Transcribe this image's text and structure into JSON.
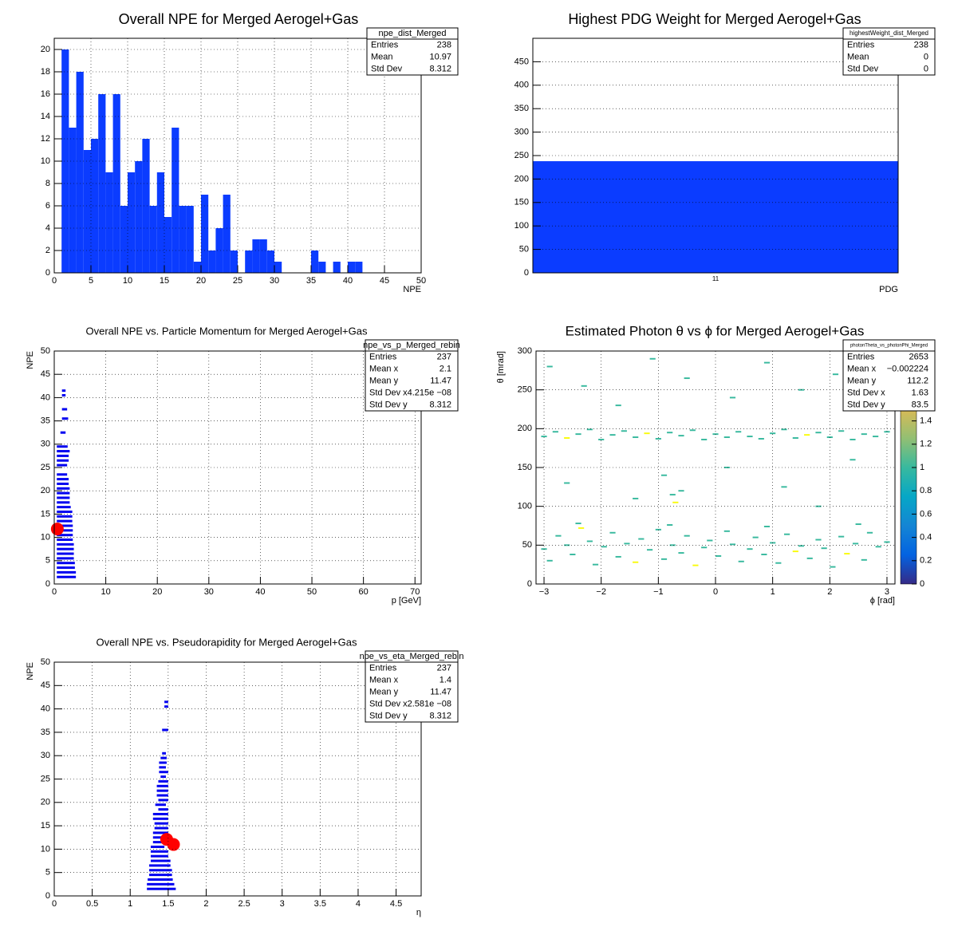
{
  "chart_data": [
    {
      "type": "histogram",
      "title": "Overall NPE for Merged Aerogel+Gas",
      "xlabel": "NPE",
      "color": "#0b3cff",
      "bins": [
        0,
        1,
        2,
        3,
        4,
        5,
        6,
        7,
        8,
        9,
        10,
        11,
        12,
        13,
        14,
        15,
        16,
        17,
        18,
        19,
        20,
        21,
        22,
        23,
        24,
        25,
        26,
        27,
        28,
        29,
        30,
        31,
        32,
        33,
        34,
        35,
        36,
        37,
        38,
        39,
        40,
        41,
        42,
        43,
        44,
        45,
        46,
        47,
        48,
        49,
        50
      ],
      "counts": [
        0,
        20,
        13,
        18,
        11,
        12,
        16,
        9,
        16,
        6,
        9,
        10,
        12,
        6,
        9,
        5,
        13,
        6,
        6,
        1,
        7,
        2,
        4,
        7,
        2,
        0,
        2,
        3,
        3,
        2,
        1,
        0,
        0,
        0,
        0,
        2,
        1,
        0,
        1,
        0,
        1,
        1,
        0,
        0,
        0,
        0,
        0,
        0,
        0,
        0
      ],
      "xlim": [
        0,
        50
      ],
      "xticks": [
        0,
        5,
        10,
        15,
        20,
        25,
        30,
        35,
        40,
        45,
        50
      ],
      "ylim": [
        0,
        21
      ],
      "yticks": [
        0,
        2,
        4,
        6,
        8,
        10,
        12,
        14,
        16,
        18,
        20
      ],
      "grid": true,
      "stats": {
        "name": "npe_dist_Merged",
        "rows": [
          [
            "Entries",
            238
          ],
          [
            "Mean",
            10.97
          ],
          [
            "Std Dev",
            8.312
          ]
        ]
      }
    },
    {
      "type": "bar",
      "title": "Highest PDG Weight for Merged Aerogel+Gas",
      "xlabel": "PDG",
      "color": "#0b3cff",
      "categories": [
        "11"
      ],
      "values": [
        238
      ],
      "ylim": [
        0,
        500
      ],
      "yticks": [
        0,
        50,
        100,
        150,
        200,
        250,
        300,
        350,
        400,
        450
      ],
      "grid": true,
      "stats": {
        "name": "highestWeight_dist_Merged",
        "rows": [
          [
            "Entries",
            238
          ],
          [
            "Mean",
            0
          ],
          [
            "Std Dev",
            0
          ]
        ]
      }
    },
    {
      "type": "box2d",
      "title": "Overall NPE vs. Particle Momentum for Merged Aerogel+Gas",
      "xlabel": "p [GeV]",
      "ylabel": "NPE",
      "color": "#0000f0",
      "point_color": "#ff0000",
      "cells": {
        "y": [
          1.5,
          2.5,
          3.5,
          4.5,
          5.5,
          6.5,
          7.5,
          8.5,
          9.5,
          10.5,
          11.5,
          12.5,
          13.5,
          14.5,
          15.5,
          16.5,
          17.5,
          18.5,
          19.5,
          20.5,
          21.5,
          22.5,
          23.5,
          25.5,
          26.5,
          27.5,
          28.5,
          29.5,
          32.5,
          35.5,
          37.5,
          40.5,
          41.5
        ],
        "xmin": [
          0.5,
          0.5,
          0.5,
          0.5,
          0.5,
          0.5,
          0.5,
          0.5,
          0.5,
          0.5,
          0.5,
          0.5,
          0.5,
          0.5,
          0.5,
          0.5,
          0.5,
          0.5,
          0.5,
          0.5,
          0.5,
          0.5,
          0.5,
          0.5,
          0.5,
          0.5,
          0.5,
          0.5,
          1.2,
          1.5,
          1.5,
          1.5,
          1.5
        ],
        "xmax": [
          4.2,
          4.2,
          4,
          4,
          3.8,
          3.8,
          3.8,
          3.8,
          3.6,
          3.6,
          3.6,
          3.6,
          3.5,
          3.5,
          3.5,
          3.2,
          3,
          3,
          3,
          3,
          2.8,
          2.8,
          2.5,
          2.5,
          2.8,
          2.8,
          3,
          2.6,
          2.2,
          2.7,
          2.5,
          2.2,
          2.2
        ]
      },
      "points": {
        "x": [
          0.6
        ],
        "y": [
          11.8
        ]
      },
      "xlim": [
        0,
        71.2
      ],
      "xticks": [
        0,
        10,
        20,
        30,
        40,
        50,
        60,
        70
      ],
      "ylim": [
        0,
        50
      ],
      "yticks": [
        0,
        5,
        10,
        15,
        20,
        25,
        30,
        35,
        40,
        45,
        50
      ],
      "grid": true,
      "stats": {
        "name": "npe_vs_p_Merged_rebin",
        "rows": [
          [
            "Entries",
            237
          ],
          [
            "Mean x",
            2.1
          ],
          [
            "Mean y",
            11.47
          ],
          [
            "Std Dev x",
            "4.215e −08"
          ],
          [
            "Std Dev y",
            8.312
          ]
        ]
      }
    },
    {
      "type": "colz",
      "title": "Estimated Photon θ vs ϕ for Merged Aerogel+Gas",
      "xlabel": "ϕ [rad]",
      "ylabel": "θ [mrad]",
      "xbin": 0.1,
      "ybin": 2,
      "x": [
        -3.0,
        -2.8,
        -2.6,
        -2.4,
        -2.2,
        -2.0,
        -1.8,
        -1.6,
        -1.4,
        -1.2,
        -1.0,
        -0.8,
        -0.6,
        -0.4,
        -0.2,
        0.0,
        0.2,
        0.4,
        0.6,
        0.8,
        1.0,
        1.2,
        1.4,
        1.6,
        1.8,
        2.0,
        2.2,
        2.4,
        2.6,
        2.8,
        3.0,
        -3.0,
        -2.9,
        -2.75,
        -2.6,
        -2.5,
        -2.35,
        -2.2,
        -2.1,
        -1.95,
        -1.8,
        -1.7,
        -1.55,
        -1.4,
        -1.3,
        -1.15,
        -1.0,
        -0.9,
        -0.75,
        -0.6,
        -0.5,
        -0.35,
        -0.2,
        -0.1,
        0.05,
        0.2,
        0.3,
        0.45,
        0.6,
        0.7,
        0.85,
        1.0,
        1.1,
        1.25,
        1.4,
        1.5,
        1.65,
        1.8,
        1.9,
        2.05,
        2.2,
        2.3,
        2.45,
        2.6,
        2.7,
        2.85,
        3.0,
        -2.4,
        -0.8,
        0.9,
        2.5,
        -2.9,
        -2.3,
        -1.7,
        -1.1,
        -0.5,
        0.3,
        0.9,
        1.5,
        2.1,
        2.7,
        -2.6,
        -1.4,
        -0.9,
        -0.6,
        0.2,
        1.2,
        1.8,
        2.4,
        -0.75,
        -0.7
      ],
      "y": [
        190,
        196,
        188,
        193,
        199,
        186,
        192,
        197,
        189,
        194,
        187,
        195,
        191,
        198,
        186,
        193,
        189,
        196,
        190,
        187,
        194,
        199,
        188,
        192,
        195,
        189,
        197,
        186,
        193,
        190,
        196,
        45,
        30,
        62,
        50,
        38,
        72,
        55,
        25,
        48,
        66,
        35,
        52,
        28,
        58,
        44,
        70,
        32,
        50,
        40,
        62,
        24,
        47,
        56,
        36,
        68,
        51,
        29,
        45,
        60,
        38,
        53,
        27,
        64,
        42,
        49,
        33,
        57,
        46,
        22,
        61,
        39,
        52,
        31,
        66,
        48,
        54,
        78,
        76,
        74,
        77,
        280,
        255,
        230,
        290,
        265,
        240,
        285,
        250,
        270,
        235,
        130,
        110,
        140,
        120,
        150,
        125,
        100,
        160,
        115,
        105
      ],
      "z": [
        1,
        1,
        2,
        1,
        1,
        1,
        1,
        1,
        1,
        2,
        1,
        1,
        1,
        1,
        1,
        1,
        1,
        1,
        1,
        1,
        1,
        1,
        1,
        2,
        1,
        1,
        1,
        1,
        1,
        1,
        1,
        1,
        1,
        1,
        1,
        1,
        2,
        1,
        1,
        1,
        1,
        1,
        1,
        2,
        1,
        1,
        1,
        1,
        1,
        1,
        1,
        2,
        1,
        1,
        1,
        1,
        1,
        1,
        1,
        1,
        1,
        1,
        1,
        1,
        2,
        1,
        1,
        1,
        1,
        1,
        1,
        2,
        1,
        1,
        1,
        1,
        1,
        1,
        1,
        1,
        1,
        1,
        1,
        1,
        1,
        1,
        1,
        1,
        1,
        1,
        1,
        1,
        1,
        1,
        1,
        1,
        1,
        1,
        1,
        1,
        2
      ],
      "xlim": [
        -3.14,
        3.14
      ],
      "xticks": [
        {
          "value": -3,
          "label": "−3"
        },
        {
          "value": -2,
          "label": "−2"
        },
        {
          "value": -1,
          "label": "−1"
        },
        0,
        1,
        2,
        3
      ],
      "ylim": [
        0,
        300
      ],
      "yticks": [
        0,
        50,
        100,
        150,
        200,
        250,
        300
      ],
      "grid": true,
      "zlim": [
        0,
        2
      ],
      "zticks": [
        0,
        0.2,
        0.4,
        0.6,
        0.8,
        1,
        1.2,
        1.4
      ],
      "stats": {
        "name": "photonTheta_vs_photonPhi_Merged",
        "rows": [
          [
            "Entries",
            2653
          ],
          [
            "Mean x",
            "−0.002224"
          ],
          [
            "Mean y",
            112.2
          ],
          [
            "Std Dev x",
            1.63
          ],
          [
            "Std Dev y",
            83.5
          ]
        ]
      }
    },
    {
      "type": "box2d",
      "title": "Overall NPE vs. Pseudorapidity for Merged Aerogel+Gas",
      "xlabel": "η",
      "ylabel": "NPE",
      "color": "#0000f0",
      "point_color": "#ff0000",
      "cells": {
        "y": [
          1.5,
          2.5,
          3.5,
          4.5,
          5.5,
          6.5,
          7.5,
          8.5,
          9.5,
          10.5,
          11.5,
          12.5,
          13.5,
          14.5,
          15.5,
          16.5,
          17.5,
          18.5,
          19.5,
          20.5,
          21.5,
          22.5,
          23.5,
          24.5,
          25.5,
          26.5,
          27.5,
          28.5,
          29.5,
          30.5,
          35.5,
          40.5,
          41.5
        ],
        "xmin": [
          1.22,
          1.22,
          1.23,
          1.25,
          1.25,
          1.25,
          1.27,
          1.27,
          1.27,
          1.27,
          1.3,
          1.3,
          1.3,
          1.32,
          1.32,
          1.3,
          1.3,
          1.37,
          1.33,
          1.37,
          1.35,
          1.35,
          1.35,
          1.37,
          1.4,
          1.38,
          1.38,
          1.38,
          1.4,
          1.42,
          1.42,
          1.45,
          1.45
        ],
        "xmax": [
          1.6,
          1.58,
          1.56,
          1.55,
          1.55,
          1.53,
          1.53,
          1.5,
          1.5,
          1.45,
          1.45,
          1.47,
          1.5,
          1.5,
          1.5,
          1.5,
          1.5,
          1.5,
          1.47,
          1.5,
          1.5,
          1.5,
          1.5,
          1.5,
          1.47,
          1.5,
          1.47,
          1.48,
          1.48,
          1.47,
          1.5,
          1.5,
          1.5
        ]
      },
      "points": {
        "x": [
          1.48,
          1.57
        ],
        "y": [
          12.1,
          11.0
        ]
      },
      "xlim": [
        0,
        4.83
      ],
      "xticks": [
        0,
        0.5,
        1,
        1.5,
        2,
        2.5,
        3,
        3.5,
        4,
        4.5
      ],
      "ylim": [
        0,
        50
      ],
      "yticks": [
        0,
        5,
        10,
        15,
        20,
        25,
        30,
        35,
        40,
        45,
        50
      ],
      "grid": true,
      "stats": {
        "name": "npe_vs_eta_Merged_rebin",
        "rows": [
          [
            "Entries",
            237
          ],
          [
            "Mean x",
            1.4
          ],
          [
            "Mean y",
            11.47
          ],
          [
            "Std Dev x",
            "2.581e −08"
          ],
          [
            "Std Dev y",
            8.312
          ]
        ]
      }
    }
  ]
}
